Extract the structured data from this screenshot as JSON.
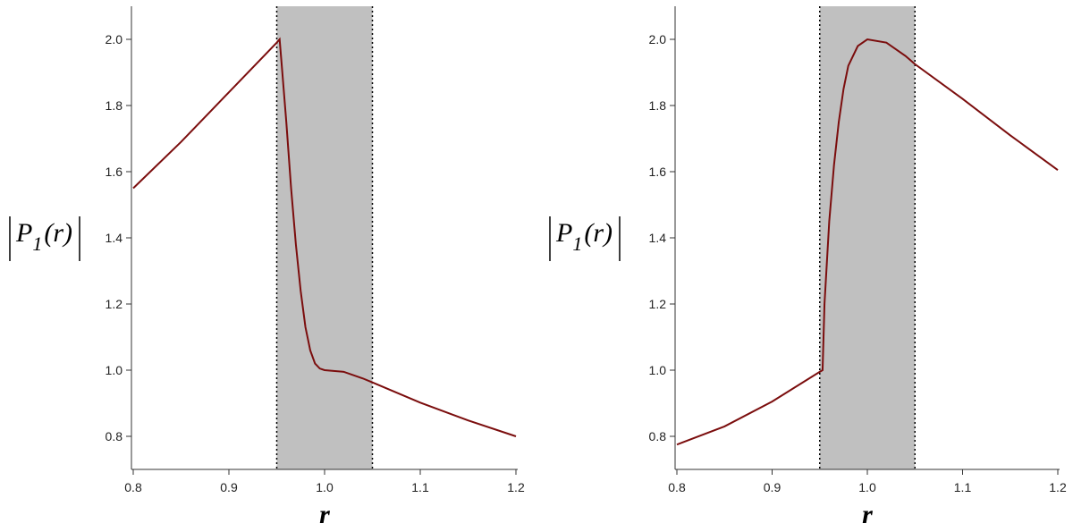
{
  "chart_data": [
    {
      "type": "line",
      "xlabel": "r",
      "ylabel": [
        "P",
        "1",
        "(r)"
      ],
      "xlim": [
        0.8,
        1.2
      ],
      "ylim": [
        0.7,
        2.1
      ],
      "xticks": [
        0.8,
        0.9,
        {
          "value": 1,
          "label": "1.0"
        },
        1.1,
        1.2
      ],
      "yticks": [
        0.8,
        {
          "value": 1,
          "label": "1.0"
        },
        1.2,
        1.4,
        1.6,
        1.8,
        {
          "value": 2,
          "label": "2.0"
        }
      ],
      "shaded_region": [
        0.95,
        1.05
      ],
      "shade_color": "#c0c0c0",
      "x": [
        0.8,
        0.85,
        0.9,
        0.95,
        0.953,
        0.955,
        0.96,
        0.965,
        0.97,
        0.975,
        0.98,
        0.985,
        0.99,
        0.995,
        1.0,
        1.02,
        1.04,
        1.05,
        1.1,
        1.15,
        1.2
      ],
      "series": [
        {
          "color": "#7b0d0d",
          "values": [
            1.55,
            1.69,
            1.84,
            1.99,
            2.0,
            1.93,
            1.75,
            1.55,
            1.38,
            1.24,
            1.13,
            1.06,
            1.02,
            1.005,
            1.0,
            0.995,
            0.975,
            0.963,
            0.902,
            0.848,
            0.8
          ]
        }
      ]
    },
    {
      "type": "line",
      "xlabel": "r",
      "ylabel": [
        "P",
        "1",
        "(r)"
      ],
      "xlim": [
        0.8,
        1.2
      ],
      "ylim": [
        0.7,
        2.1
      ],
      "xticks": [
        0.8,
        0.9,
        {
          "value": 1,
          "label": "1.0"
        },
        1.1,
        1.2
      ],
      "yticks": [
        0.8,
        {
          "value": 1,
          "label": "1.0"
        },
        1.2,
        1.4,
        1.6,
        1.8,
        {
          "value": 2,
          "label": "2.0"
        }
      ],
      "shaded_region": [
        0.95,
        1.05
      ],
      "shade_color": "#c0c0c0",
      "x": [
        0.8,
        0.85,
        0.9,
        0.95,
        0.953,
        0.955,
        0.96,
        0.965,
        0.97,
        0.975,
        0.98,
        0.99,
        1.0,
        1.02,
        1.04,
        1.05,
        1.1,
        1.15,
        1.2
      ],
      "series": [
        {
          "color": "#7b0d0d",
          "values": [
            0.775,
            0.83,
            0.905,
            0.995,
            1.0,
            1.2,
            1.45,
            1.62,
            1.75,
            1.85,
            1.92,
            1.98,
            2.0,
            1.99,
            1.95,
            1.925,
            1.82,
            1.71,
            1.605
          ]
        }
      ]
    }
  ]
}
